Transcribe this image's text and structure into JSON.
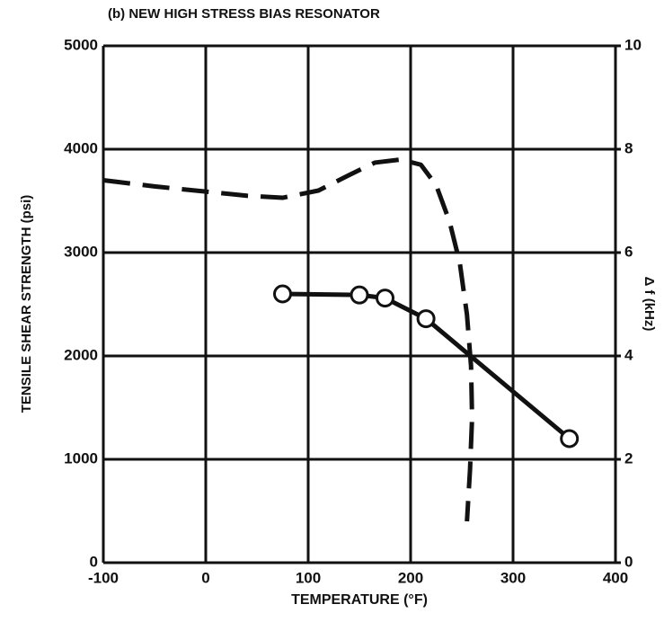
{
  "chart_data": {
    "type": "line",
    "title": "(b) NEW HIGH STRESS BIAS RESONATOR",
    "xlabel": "TEMPERATURE (°F)",
    "ylabel": "TENSILE SHEAR STRENGTH (psi)",
    "y2label": "Δ f (kHz)",
    "xlim": [
      -100,
      400
    ],
    "xticks": [
      -100,
      0,
      100,
      200,
      300,
      400
    ],
    "ylim": [
      0,
      5000
    ],
    "yticks": [
      0,
      1000,
      2000,
      3000,
      4000,
      5000
    ],
    "y2lim": [
      0,
      10
    ],
    "y2ticks": [
      0,
      2,
      4,
      6,
      8,
      10
    ],
    "grid": true,
    "series": [
      {
        "color": "#111111",
        "style": "solid",
        "markers": true,
        "x": [
          75,
          150,
          175,
          215,
          355
        ],
        "values": [
          2600,
          2590,
          2560,
          2360,
          1200
        ]
      },
      {
        "color": "#111111",
        "style": "dashed",
        "markers": false,
        "axis": "y2",
        "x": [
          -100,
          -50,
          0,
          40,
          75,
          110,
          140,
          165,
          190,
          210,
          225,
          238,
          248,
          255,
          259,
          260,
          258,
          255
        ],
        "values": [
          7.4,
          7.28,
          7.18,
          7.1,
          7.06,
          7.2,
          7.5,
          7.74,
          7.8,
          7.7,
          7.3,
          6.6,
          5.8,
          4.8,
          3.8,
          2.8,
          1.8,
          0.8
        ]
      }
    ]
  }
}
